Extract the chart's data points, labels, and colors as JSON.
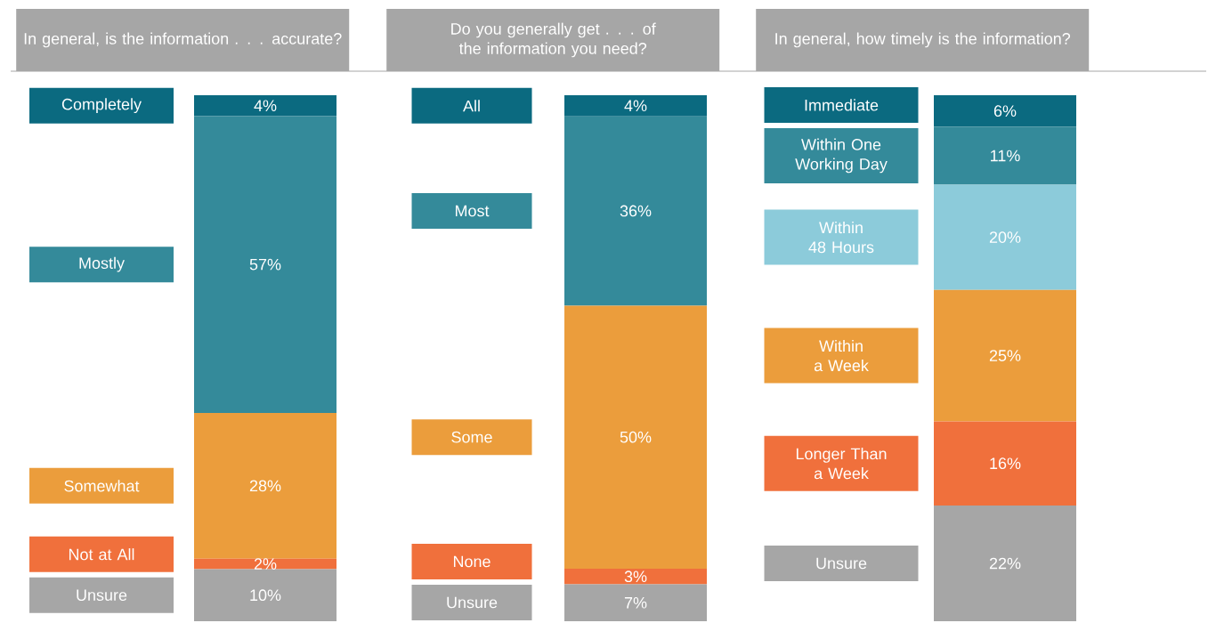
{
  "chart_data": [
    {
      "type": "bar",
      "stacked": true,
      "title": "In general, is the information . . . accurate?",
      "categories": [
        null
      ],
      "series": [
        {
          "name": "Unsure",
          "color": "#a6a6a6",
          "values": [
            10
          ],
          "value_labels": [
            "10%"
          ]
        },
        {
          "name": "Not at All",
          "color": "#f0703c",
          "values": [
            2
          ],
          "value_labels": [
            "2%"
          ]
        },
        {
          "name": "Somewhat",
          "color": "#eb9d3c",
          "values": [
            28
          ],
          "value_labels": [
            "28%"
          ]
        },
        {
          "name": "Mostly",
          "color": "#348a9a",
          "values": [
            57
          ],
          "value_labels": [
            "57%"
          ]
        },
        {
          "name": "Completely",
          "color": "#0b6a80",
          "values": [
            4
          ],
          "value_labels": [
            "4%"
          ]
        }
      ]
    },
    {
      "type": "bar",
      "stacked": true,
      "title": "Do you generally get . . . of the information you need?",
      "categories": [
        null
      ],
      "series": [
        {
          "name": "Unsure",
          "color": "#a6a6a6",
          "values": [
            7
          ],
          "value_labels": [
            "7%"
          ]
        },
        {
          "name": "None",
          "color": "#f0703c",
          "values": [
            3
          ],
          "value_labels": [
            "3%"
          ]
        },
        {
          "name": "Some",
          "color": "#eb9d3c",
          "values": [
            50
          ],
          "value_labels": [
            "50%"
          ]
        },
        {
          "name": "Most",
          "color": "#348a9a",
          "values": [
            36
          ],
          "value_labels": [
            "36%"
          ]
        },
        {
          "name": "All",
          "color": "#0b6a80",
          "values": [
            4
          ],
          "value_labels": [
            "4%"
          ]
        }
      ]
    },
    {
      "type": "bar",
      "stacked": true,
      "title": "In general, how timely is the information?",
      "categories": [
        null
      ],
      "series": [
        {
          "name": "Unsure",
          "color": "#a6a6a6",
          "values": [
            22
          ],
          "value_labels": [
            "22%"
          ]
        },
        {
          "name": "Longer Than a Week",
          "color": "#f0703c",
          "values": [
            16
          ],
          "value_labels": [
            "16%"
          ]
        },
        {
          "name": "Within a Week",
          "color": "#eb9d3c",
          "values": [
            25
          ],
          "value_labels": [
            "25%"
          ]
        },
        {
          "name": "Within 48 Hours",
          "color": "#8ccbda",
          "values": [
            20
          ],
          "value_labels": [
            "20%"
          ]
        },
        {
          "name": "Within One Working Day",
          "color": "#348a9a",
          "values": [
            11
          ],
          "value_labels": [
            "11%"
          ]
        },
        {
          "name": "Immediate",
          "color": "#0b6a80",
          "values": [
            6
          ],
          "value_labels": [
            "6%"
          ]
        }
      ]
    }
  ]
}
